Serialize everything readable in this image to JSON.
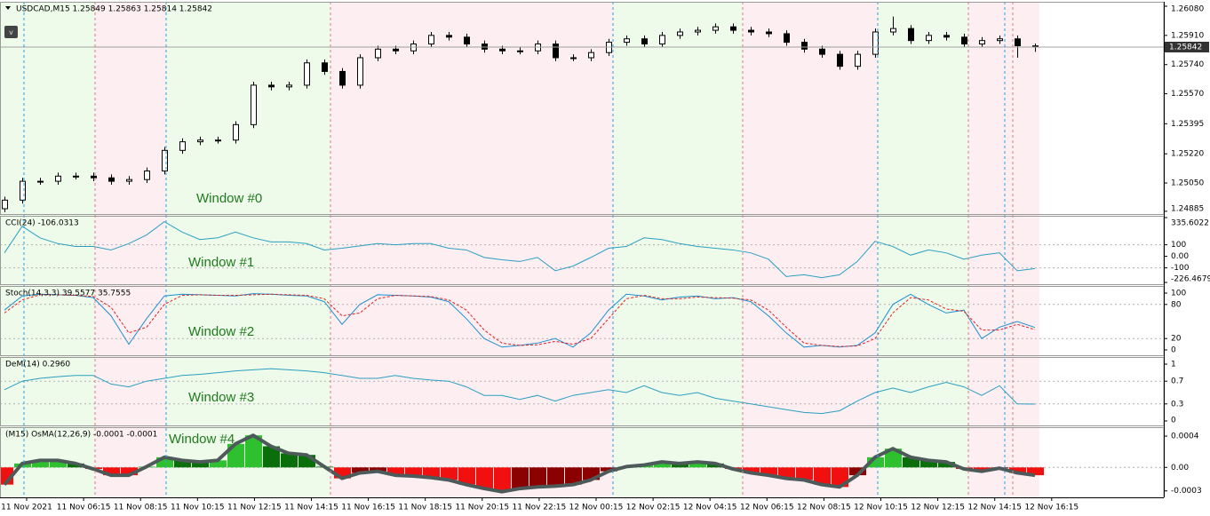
{
  "chart_data": [
    {
      "type": "candlestick",
      "title": "USDCAD,M15  1.25849 1.25863 1.25814 1.25842",
      "annotation": "Window #0",
      "open": [
        1.249,
        1.2495,
        1.2506,
        1.2506,
        1.2509,
        1.2509,
        1.2508,
        1.2506,
        1.2507,
        1.2512,
        1.2524,
        1.2529,
        1.253,
        1.253,
        1.2539,
        1.2562,
        1.2561,
        1.2562,
        1.2575,
        1.257,
        1.2562,
        1.2578,
        1.2583,
        1.2582,
        1.2586,
        1.2591,
        1.259,
        1.2586,
        1.2583,
        1.2582,
        1.2582,
        1.2586,
        1.2578,
        1.2578,
        1.2581,
        1.2587,
        1.2589,
        1.2586,
        1.2591,
        1.2593,
        1.2594,
        1.2596,
        1.2594,
        1.2593,
        1.2592,
        1.2587,
        1.2583,
        1.258,
        1.2573,
        1.258,
        1.2593,
        1.2595,
        1.2588,
        1.2591,
        1.259,
        1.2586,
        1.2588,
        1.2589,
        1.25849
      ],
      "high": [
        1.2497,
        1.2508,
        1.2508,
        1.2511,
        1.2511,
        1.2511,
        1.251,
        1.2509,
        1.2514,
        1.2526,
        1.2531,
        1.2532,
        1.2532,
        1.2541,
        1.2564,
        1.2564,
        1.2564,
        1.2577,
        1.2577,
        1.2572,
        1.258,
        1.2585,
        1.2585,
        1.2588,
        1.2593,
        1.2593,
        1.2592,
        1.2588,
        1.2585,
        1.2584,
        1.2588,
        1.2588,
        1.258,
        1.2583,
        1.2589,
        1.2591,
        1.2591,
        1.2593,
        1.2595,
        1.2596,
        1.2598,
        1.2598,
        1.2596,
        1.2595,
        1.2594,
        1.2589,
        1.2585,
        1.2582,
        1.2582,
        1.2595,
        1.2602,
        1.2597,
        1.2593,
        1.2593,
        1.2592,
        1.259,
        1.2591,
        1.2591,
        1.25863
      ],
      "low": [
        1.2488,
        1.2493,
        1.2504,
        1.2504,
        1.2507,
        1.2506,
        1.2504,
        1.2504,
        1.2505,
        1.251,
        1.2522,
        1.2527,
        1.2528,
        1.2528,
        1.2537,
        1.2559,
        1.2559,
        1.256,
        1.2568,
        1.256,
        1.256,
        1.2576,
        1.258,
        1.258,
        1.2584,
        1.2588,
        1.2584,
        1.2581,
        1.258,
        1.258,
        1.258,
        1.2576,
        1.2576,
        1.2576,
        1.2579,
        1.2585,
        1.2584,
        1.2584,
        1.2589,
        1.2591,
        1.2592,
        1.2592,
        1.2591,
        1.259,
        1.2585,
        1.2581,
        1.2578,
        1.2571,
        1.2571,
        1.2578,
        1.2591,
        1.2586,
        1.2586,
        1.2588,
        1.2584,
        1.2584,
        1.2586,
        1.2578,
        1.25814
      ],
      "close": [
        1.2495,
        1.2506,
        1.2506,
        1.2509,
        1.2509,
        1.2508,
        1.2506,
        1.2507,
        1.2512,
        1.2524,
        1.2529,
        1.253,
        1.253,
        1.2539,
        1.2562,
        1.2561,
        1.2562,
        1.2575,
        1.257,
        1.2562,
        1.2578,
        1.2583,
        1.2582,
        1.2586,
        1.2591,
        1.259,
        1.2586,
        1.2583,
        1.2582,
        1.2582,
        1.2586,
        1.2578,
        1.2578,
        1.2581,
        1.2587,
        1.2589,
        1.2586,
        1.2591,
        1.2593,
        1.2594,
        1.2596,
        1.2594,
        1.2593,
        1.2592,
        1.2587,
        1.2583,
        1.258,
        1.2573,
        1.258,
        1.2593,
        1.2595,
        1.2588,
        1.2591,
        1.259,
        1.2586,
        1.2588,
        1.2589,
        1.2585,
        1.25842
      ],
      "ylim": [
        1.24869,
        1.26106
      ],
      "yticks": [
        {
          "value": 1.2608,
          "label": "1.26080"
        },
        {
          "value": 1.2591,
          "label": "1.25910"
        },
        {
          "value": 1.2574,
          "label": "1.25740"
        },
        {
          "value": 1.2557,
          "label": "1.25570"
        },
        {
          "value": 1.25395,
          "label": "1.25395"
        },
        {
          "value": 1.2522,
          "label": "1.25220"
        },
        {
          "value": 1.2505,
          "label": "1.25050"
        },
        {
          "value": 1.24885,
          "label": "1.24885"
        }
      ]
    },
    {
      "type": "line",
      "title": "CCI(24) -106.0313",
      "annotation": "Window #1",
      "series": [
        {
          "color": "#2a9fc0",
          "values": [
            30,
            260,
            160,
            110,
            85,
            85,
            55,
            110,
            185,
            300,
            210,
            145,
            160,
            210,
            160,
            125,
            125,
            110,
            55,
            70,
            90,
            110,
            100,
            110,
            110,
            70,
            55,
            -10,
            -30,
            -45,
            -10,
            -125,
            -85,
            -10,
            70,
            85,
            160,
            145,
            110,
            85,
            70,
            55,
            30,
            -25,
            -175,
            -160,
            -185,
            -160,
            -45,
            130,
            85,
            10,
            55,
            30,
            -25,
            10,
            30,
            -125,
            -106.0313
          ]
        }
      ],
      "ylim": [
        -226.4679,
        335.6022
      ],
      "yticks": [
        335.6022,
        100,
        {
          "value": 0,
          "label": "0.00"
        },
        -100,
        -226.4679
      ],
      "levels": [
        100,
        -100
      ]
    },
    {
      "type": "line",
      "title": "Stoch(14,3,3) 39.5577 35.7555",
      "annotation": "Window #2",
      "series": [
        {
          "color": "#1e8fd0",
          "dash": false,
          "values": [
            70,
            95,
            98,
            97,
            96,
            92,
            60,
            10,
            55,
            95,
            98,
            97,
            96,
            95,
            99,
            98,
            96,
            95,
            85,
            45,
            80,
            97,
            96,
            95,
            93,
            85,
            55,
            20,
            5,
            8,
            12,
            20,
            5,
            30,
            70,
            98,
            95,
            88,
            93,
            95,
            90,
            92,
            85,
            60,
            30,
            5,
            8,
            5,
            8,
            30,
            80,
            98,
            80,
            65,
            70,
            20,
            40,
            50,
            39.5577
          ]
        },
        {
          "color": "#e02020",
          "dash": true,
          "values": [
            65,
            88,
            97,
            97,
            96,
            94,
            75,
            30,
            40,
            80,
            96,
            97,
            96,
            96,
            97,
            98,
            97,
            96,
            90,
            60,
            65,
            90,
            96,
            95,
            94,
            88,
            70,
            35,
            12,
            8,
            9,
            15,
            10,
            20,
            55,
            90,
            96,
            90,
            90,
            93,
            92,
            91,
            88,
            70,
            40,
            12,
            8,
            6,
            7,
            20,
            65,
            92,
            88,
            72,
            68,
            35,
            35,
            45,
            35.7555
          ]
        }
      ],
      "ylim": [
        0,
        100
      ],
      "yticks": [
        100,
        80,
        20,
        0
      ],
      "levels": [
        80,
        20
      ]
    },
    {
      "type": "line",
      "title": "DeM(14) 0.2960",
      "annotation": "Window #3",
      "series": [
        {
          "color": "#2a9fc0",
          "values": [
            0.55,
            0.7,
            0.75,
            0.78,
            0.8,
            0.8,
            0.65,
            0.6,
            0.7,
            0.75,
            0.8,
            0.82,
            0.85,
            0.88,
            0.9,
            0.92,
            0.9,
            0.88,
            0.85,
            0.8,
            0.75,
            0.75,
            0.8,
            0.75,
            0.72,
            0.7,
            0.6,
            0.45,
            0.45,
            0.38,
            0.45,
            0.35,
            0.45,
            0.5,
            0.55,
            0.5,
            0.62,
            0.5,
            0.45,
            0.5,
            0.4,
            0.35,
            0.3,
            0.25,
            0.2,
            0.15,
            0.13,
            0.18,
            0.35,
            0.5,
            0.58,
            0.5,
            0.6,
            0.68,
            0.6,
            0.45,
            0.62,
            0.3,
            0.296
          ]
        }
      ],
      "ylim": [
        0,
        1
      ],
      "yticks": [
        1,
        0.7,
        0.3,
        0
      ],
      "levels": [
        0.7,
        0.3
      ]
    },
    {
      "type": "histogram",
      "title": "(M15) OsMA(12,26,9) -0.0001 -0.0001",
      "annotation": "Window #4",
      "values": [
        -0.00022,
        5e-05,
        9e-05,
        9e-05,
        5e-05,
        -2e-05,
        -0.0001,
        -0.0001,
        1e-05,
        0.00013,
        9e-05,
        7e-05,
        9e-05,
        0.0003,
        0.00041,
        0.00027,
        0.00018,
        0.00016,
        1e-05,
        -0.00014,
        -7e-05,
        -5e-05,
        -0.0001,
        -0.00011,
        -0.00013,
        -0.00016,
        -0.00022,
        -0.00027,
        -0.00031,
        -0.00027,
        -0.00025,
        -0.00024,
        -0.00022,
        -0.00016,
        -5e-05,
        1e-05,
        3e-05,
        7e-05,
        5e-05,
        7e-05,
        5e-05,
        -2e-05,
        -7e-05,
        -0.0001,
        -0.00014,
        -0.00016,
        -0.00022,
        -0.00025,
        -0.0001,
        0.00013,
        0.00024,
        0.00013,
        9e-05,
        7e-05,
        -2e-05,
        -5e-05,
        -1e-05,
        -7e-05,
        -0.0001
      ],
      "ylim": [
        -0.00036,
        0.00048
      ],
      "yticks": [
        0.0004,
        {
          "value": 0,
          "label": "0.00"
        },
        -0.0003
      ],
      "levels": [
        0
      ]
    }
  ],
  "time_labels": [
    "11 Nov 2021",
    "11 Nov 06:15",
    "11 Nov 08:15",
    "11 Nov 10:15",
    "11 Nov 12:15",
    "11 Nov 14:15",
    "11 Nov 16:15",
    "11 Nov 18:15",
    "11 Nov 20:15",
    "11 Nov 22:15",
    "12 Nov 00:15",
    "12 Nov 02:15",
    "12 Nov 04:15",
    "12 Nov 06:15",
    "12 Nov 08:15",
    "12 Nov 10:15",
    "12 Nov 12:15",
    "12 Nov 14:15",
    "12 Nov 16:15"
  ]
}
